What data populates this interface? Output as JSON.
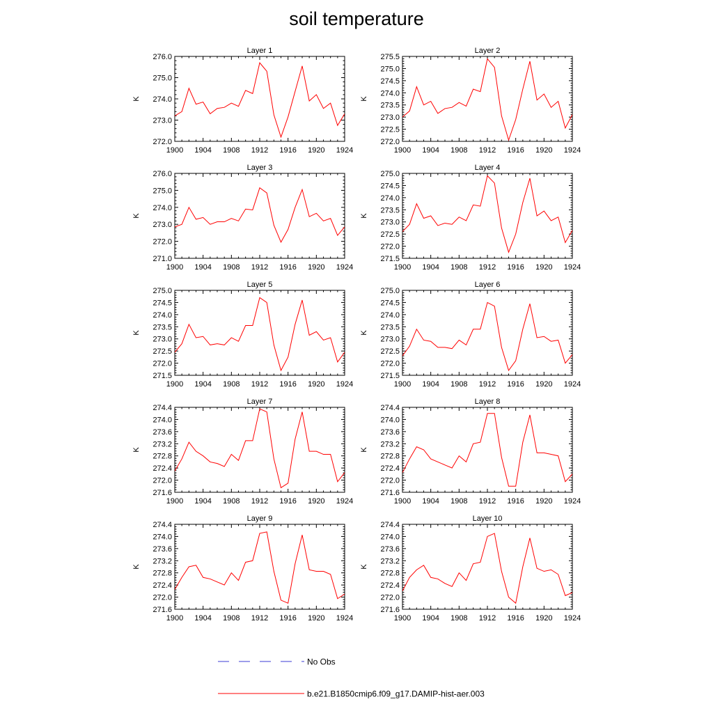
{
  "title": "soil temperature",
  "legend": {
    "obs_label": "No Obs",
    "model_label": "b.e21.B1850cmip6.f09_g17.DAMIP-hist-aer.003",
    "obs_color": "#3b3bd6",
    "model_color": "#ff0000"
  },
  "chart_data": [
    {
      "type": "line",
      "title": "Layer 1",
      "ylabel": "K",
      "x": [
        1900,
        1901,
        1902,
        1903,
        1904,
        1905,
        1906,
        1907,
        1908,
        1909,
        1910,
        1911,
        1912,
        1913,
        1914,
        1915,
        1916,
        1917,
        1918,
        1919,
        1920,
        1921,
        1922,
        1923,
        1924
      ],
      "xticks": [
        1900,
        1904,
        1908,
        1912,
        1916,
        1920,
        1924
      ],
      "xlim": [
        1900,
        1924
      ],
      "ylim": [
        272.0,
        276.0
      ],
      "yticks": [
        "272.0",
        "273.0",
        "274.0",
        "275.0",
        "276.0"
      ],
      "series": [
        {
          "name": "b.e21.B1850cmip6.f09_g17.DAMIP-hist-aer.003",
          "values": [
            273.2,
            273.4,
            274.5,
            273.75,
            273.85,
            273.3,
            273.55,
            273.6,
            273.8,
            273.65,
            274.4,
            274.25,
            275.7,
            275.3,
            273.25,
            272.2,
            273.15,
            274.35,
            275.55,
            273.9,
            274.2,
            273.55,
            273.8,
            272.75,
            273.3
          ]
        }
      ]
    },
    {
      "type": "line",
      "title": "Layer 2",
      "ylabel": "K",
      "x": [
        1900,
        1901,
        1902,
        1903,
        1904,
        1905,
        1906,
        1907,
        1908,
        1909,
        1910,
        1911,
        1912,
        1913,
        1914,
        1915,
        1916,
        1917,
        1918,
        1919,
        1920,
        1921,
        1922,
        1923,
        1924
      ],
      "xticks": [
        1900,
        1904,
        1908,
        1912,
        1916,
        1920,
        1924
      ],
      "xlim": [
        1900,
        1924
      ],
      "ylim": [
        272.0,
        275.5
      ],
      "yticks": [
        "272.0",
        "272.5",
        "273.0",
        "273.5",
        "274.0",
        "274.5",
        "275.0",
        "275.5"
      ],
      "series": [
        {
          "name": "b.e21.B1850cmip6.f09_g17.DAMIP-hist-aer.003",
          "values": [
            273.0,
            273.25,
            274.25,
            273.5,
            273.65,
            273.15,
            273.35,
            273.4,
            273.6,
            273.45,
            274.15,
            274.05,
            275.4,
            275.05,
            273.05,
            272.05,
            272.9,
            274.15,
            275.3,
            273.7,
            273.95,
            273.4,
            273.65,
            272.55,
            273.1
          ]
        }
      ]
    },
    {
      "type": "line",
      "title": "Layer 3",
      "ylabel": "K",
      "x": [
        1900,
        1901,
        1902,
        1903,
        1904,
        1905,
        1906,
        1907,
        1908,
        1909,
        1910,
        1911,
        1912,
        1913,
        1914,
        1915,
        1916,
        1917,
        1918,
        1919,
        1920,
        1921,
        1922,
        1923,
        1924
      ],
      "xticks": [
        1900,
        1904,
        1908,
        1912,
        1916,
        1920,
        1924
      ],
      "xlim": [
        1900,
        1924
      ],
      "ylim": [
        271.0,
        276.0
      ],
      "yticks": [
        "271.0",
        "272.0",
        "273.0",
        "274.0",
        "275.0",
        "276.0"
      ],
      "series": [
        {
          "name": "b.e21.B1850cmip6.f09_g17.DAMIP-hist-aer.003",
          "values": [
            272.85,
            273.0,
            274.0,
            273.3,
            273.4,
            273.0,
            273.15,
            273.15,
            273.35,
            273.2,
            273.9,
            273.85,
            275.15,
            274.85,
            272.95,
            271.95,
            272.7,
            274.0,
            275.05,
            273.45,
            273.65,
            273.2,
            273.35,
            272.35,
            272.85
          ]
        }
      ]
    },
    {
      "type": "line",
      "title": "Layer 4",
      "ylabel": "K",
      "x": [
        1900,
        1901,
        1902,
        1903,
        1904,
        1905,
        1906,
        1907,
        1908,
        1909,
        1910,
        1911,
        1912,
        1913,
        1914,
        1915,
        1916,
        1917,
        1918,
        1919,
        1920,
        1921,
        1922,
        1923,
        1924
      ],
      "xticks": [
        1900,
        1904,
        1908,
        1912,
        1916,
        1920,
        1924
      ],
      "xlim": [
        1900,
        1924
      ],
      "ylim": [
        271.5,
        275.0
      ],
      "yticks": [
        "271.5",
        "272.0",
        "272.5",
        "273.0",
        "273.5",
        "274.0",
        "274.5",
        "275.0"
      ],
      "series": [
        {
          "name": "b.e21.B1850cmip6.f09_g17.DAMIP-hist-aer.003",
          "values": [
            272.6,
            272.9,
            273.75,
            273.15,
            273.25,
            272.85,
            272.95,
            272.9,
            273.2,
            273.05,
            273.7,
            273.65,
            274.9,
            274.6,
            272.75,
            271.75,
            272.5,
            273.8,
            274.8,
            273.25,
            273.45,
            273.05,
            273.2,
            272.15,
            272.65
          ]
        }
      ]
    },
    {
      "type": "line",
      "title": "Layer 5",
      "ylabel": "K",
      "x": [
        1900,
        1901,
        1902,
        1903,
        1904,
        1905,
        1906,
        1907,
        1908,
        1909,
        1910,
        1911,
        1912,
        1913,
        1914,
        1915,
        1916,
        1917,
        1918,
        1919,
        1920,
        1921,
        1922,
        1923,
        1924
      ],
      "xticks": [
        1900,
        1904,
        1908,
        1912,
        1916,
        1920,
        1924
      ],
      "xlim": [
        1900,
        1924
      ],
      "ylim": [
        271.5,
        275.0
      ],
      "yticks": [
        "271.5",
        "272.0",
        "272.5",
        "273.0",
        "273.5",
        "274.0",
        "274.5",
        "275.0"
      ],
      "series": [
        {
          "name": "b.e21.B1850cmip6.f09_g17.DAMIP-hist-aer.003",
          "values": [
            272.45,
            272.8,
            273.6,
            273.05,
            273.1,
            272.75,
            272.8,
            272.75,
            273.05,
            272.9,
            273.55,
            273.55,
            274.7,
            274.5,
            272.75,
            271.7,
            272.25,
            273.6,
            274.6,
            273.15,
            273.3,
            272.95,
            273.05,
            272.05,
            272.45
          ]
        }
      ]
    },
    {
      "type": "line",
      "title": "Layer 6",
      "ylabel": "K",
      "x": [
        1900,
        1901,
        1902,
        1903,
        1904,
        1905,
        1906,
        1907,
        1908,
        1909,
        1910,
        1911,
        1912,
        1913,
        1914,
        1915,
        1916,
        1917,
        1918,
        1919,
        1920,
        1921,
        1922,
        1923,
        1924
      ],
      "xticks": [
        1900,
        1904,
        1908,
        1912,
        1916,
        1920,
        1924
      ],
      "xlim": [
        1900,
        1924
      ],
      "ylim": [
        271.5,
        275.0
      ],
      "yticks": [
        "271.5",
        "272.0",
        "272.5",
        "273.0",
        "273.5",
        "274.0",
        "274.5",
        "275.0"
      ],
      "series": [
        {
          "name": "b.e21.B1850cmip6.f09_g17.DAMIP-hist-aer.003",
          "values": [
            272.3,
            272.7,
            273.4,
            272.95,
            272.9,
            272.65,
            272.65,
            272.6,
            272.95,
            272.75,
            273.4,
            273.4,
            274.5,
            274.35,
            272.65,
            271.7,
            272.1,
            273.4,
            274.45,
            273.05,
            273.1,
            272.9,
            272.95,
            272.0,
            272.35
          ]
        }
      ]
    },
    {
      "type": "line",
      "title": "Layer 7",
      "ylabel": "K",
      "x": [
        1900,
        1901,
        1902,
        1903,
        1904,
        1905,
        1906,
        1907,
        1908,
        1909,
        1910,
        1911,
        1912,
        1913,
        1914,
        1915,
        1916,
        1917,
        1918,
        1919,
        1920,
        1921,
        1922,
        1923,
        1924
      ],
      "xticks": [
        1900,
        1904,
        1908,
        1912,
        1916,
        1920,
        1924
      ],
      "xlim": [
        1900,
        1924
      ],
      "ylim": [
        271.6,
        274.4
      ],
      "yticks": [
        "271.6",
        "272.0",
        "272.4",
        "272.8",
        "273.2",
        "273.6",
        "274.0",
        "274.4"
      ],
      "series": [
        {
          "name": "b.e21.B1850cmip6.f09_g17.DAMIP-hist-aer.003",
          "values": [
            272.3,
            272.7,
            273.25,
            272.95,
            272.8,
            272.6,
            272.55,
            272.45,
            272.85,
            272.65,
            273.3,
            273.3,
            274.35,
            274.25,
            272.7,
            271.75,
            271.9,
            273.35,
            274.25,
            272.95,
            272.95,
            272.85,
            272.85,
            271.95,
            272.25
          ]
        }
      ]
    },
    {
      "type": "line",
      "title": "Layer 8",
      "ylabel": "K",
      "x": [
        1900,
        1901,
        1902,
        1903,
        1904,
        1905,
        1906,
        1907,
        1908,
        1909,
        1910,
        1911,
        1912,
        1913,
        1914,
        1915,
        1916,
        1917,
        1918,
        1919,
        1920,
        1921,
        1922,
        1923,
        1924
      ],
      "xticks": [
        1900,
        1904,
        1908,
        1912,
        1916,
        1920,
        1924
      ],
      "xlim": [
        1900,
        1924
      ],
      "ylim": [
        271.6,
        274.4
      ],
      "yticks": [
        "271.6",
        "272.0",
        "272.4",
        "272.8",
        "273.2",
        "273.6",
        "274.0",
        "274.4"
      ],
      "series": [
        {
          "name": "b.e21.B1850cmip6.f09_g17.DAMIP-hist-aer.003",
          "values": [
            272.25,
            272.7,
            273.1,
            273.0,
            272.7,
            272.6,
            272.5,
            272.4,
            272.8,
            272.6,
            273.2,
            273.25,
            274.2,
            274.2,
            272.75,
            271.8,
            271.8,
            273.25,
            274.15,
            272.9,
            272.9,
            272.85,
            272.8,
            271.95,
            272.2
          ]
        }
      ]
    },
    {
      "type": "line",
      "title": "Layer 9",
      "ylabel": "K",
      "x": [
        1900,
        1901,
        1902,
        1903,
        1904,
        1905,
        1906,
        1907,
        1908,
        1909,
        1910,
        1911,
        1912,
        1913,
        1914,
        1915,
        1916,
        1917,
        1918,
        1919,
        1920,
        1921,
        1922,
        1923,
        1924
      ],
      "xticks": [
        1900,
        1904,
        1908,
        1912,
        1916,
        1920,
        1924
      ],
      "xlim": [
        1900,
        1924
      ],
      "ylim": [
        271.6,
        274.4
      ],
      "yticks": [
        "271.6",
        "272.0",
        "272.4",
        "272.8",
        "273.2",
        "273.6",
        "274.0",
        "274.4"
      ],
      "series": [
        {
          "name": "b.e21.B1850cmip6.f09_g17.DAMIP-hist-aer.003",
          "values": [
            272.25,
            272.65,
            273.0,
            273.05,
            272.65,
            272.6,
            272.5,
            272.4,
            272.8,
            272.55,
            273.15,
            273.2,
            274.1,
            274.15,
            272.85,
            271.9,
            271.8,
            273.1,
            274.05,
            272.9,
            272.85,
            272.85,
            272.75,
            271.95,
            272.1
          ]
        }
      ]
    },
    {
      "type": "line",
      "title": "Layer 10",
      "ylabel": "K",
      "x": [
        1900,
        1901,
        1902,
        1903,
        1904,
        1905,
        1906,
        1907,
        1908,
        1909,
        1910,
        1911,
        1912,
        1913,
        1914,
        1915,
        1916,
        1917,
        1918,
        1919,
        1920,
        1921,
        1922,
        1923,
        1924
      ],
      "xticks": [
        1900,
        1904,
        1908,
        1912,
        1916,
        1920,
        1924
      ],
      "xlim": [
        1900,
        1924
      ],
      "ylim": [
        271.6,
        274.4
      ],
      "yticks": [
        "271.6",
        "272.0",
        "272.4",
        "272.8",
        "273.2",
        "273.6",
        "274.0",
        "274.4"
      ],
      "series": [
        {
          "name": "b.e21.B1850cmip6.f09_g17.DAMIP-hist-aer.003",
          "values": [
            272.2,
            272.65,
            272.9,
            273.05,
            272.65,
            272.6,
            272.45,
            272.35,
            272.8,
            272.55,
            273.1,
            273.15,
            274.0,
            274.1,
            272.85,
            272.0,
            271.8,
            273.0,
            273.95,
            272.95,
            272.85,
            272.9,
            272.75,
            272.05,
            272.15
          ]
        }
      ]
    }
  ]
}
